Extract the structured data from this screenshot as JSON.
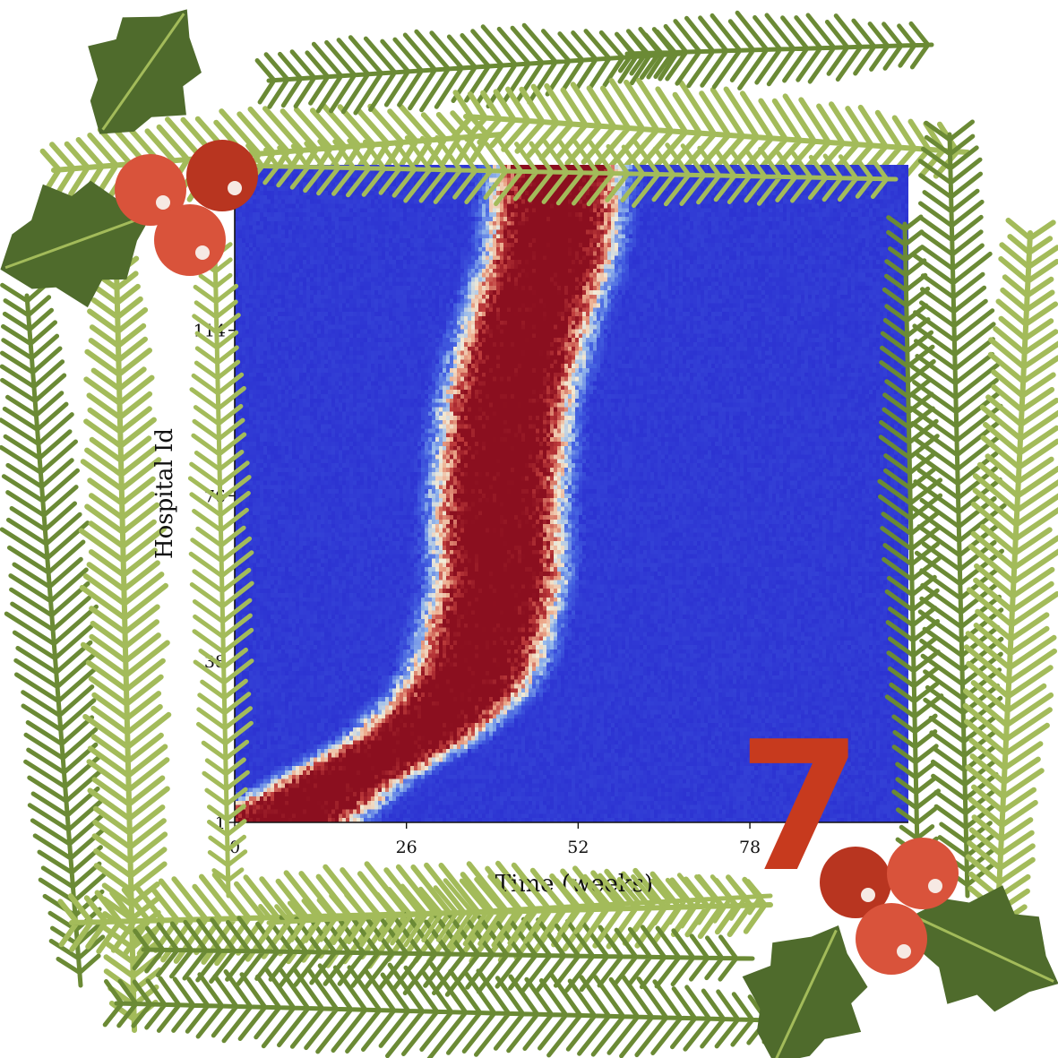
{
  "chart_data": {
    "type": "heatmap",
    "title": "",
    "xlabel": "Time (weeks)",
    "ylabel": "Hospital Id",
    "x_ticks": [
      0,
      26,
      52,
      78
    ],
    "y_ticks": [
      1,
      38,
      76,
      114
    ],
    "xlim": [
      0,
      102
    ],
    "ylim": [
      1,
      152
    ],
    "colormap": "coolwarm",
    "colors": {
      "low": "#2c33d2",
      "mid": "#f2ecd8",
      "high": "#8b0f1f"
    },
    "ridge": [
      {
        "hospital": 1,
        "peak_week": 7,
        "spread_weeks": 6
      },
      {
        "hospital": 10,
        "peak_week": 16,
        "spread_weeks": 5
      },
      {
        "hospital": 20,
        "peak_week": 27,
        "spread_weeks": 5
      },
      {
        "hospital": 30,
        "peak_week": 34,
        "spread_weeks": 5
      },
      {
        "hospital": 38,
        "peak_week": 37,
        "spread_weeks": 5
      },
      {
        "hospital": 56,
        "peak_week": 40,
        "spread_weeks": 5
      },
      {
        "hospital": 76,
        "peak_week": 40,
        "spread_weeks": 5
      },
      {
        "hospital": 95,
        "peak_week": 41,
        "spread_weeks": 5
      },
      {
        "hospital": 114,
        "peak_week": 44,
        "spread_weeks": 5
      },
      {
        "hospital": 133,
        "peak_week": 48,
        "spread_weeks": 5
      },
      {
        "hospital": 152,
        "peak_week": 49,
        "spread_weeks": 5
      }
    ],
    "grid": false,
    "legend": "none"
  },
  "overlay": {
    "day_number": "7",
    "theme": "christmas holly and pine frame",
    "colors": {
      "pine_dark": "#6b8a35",
      "pine_light": "#a3bb5a",
      "holly_leaf": "#4f6b2c",
      "berry": "#d9533b",
      "berry_dark": "#b83520"
    },
    "icons": [
      "holly-icon",
      "pine-branch-icon"
    ]
  }
}
